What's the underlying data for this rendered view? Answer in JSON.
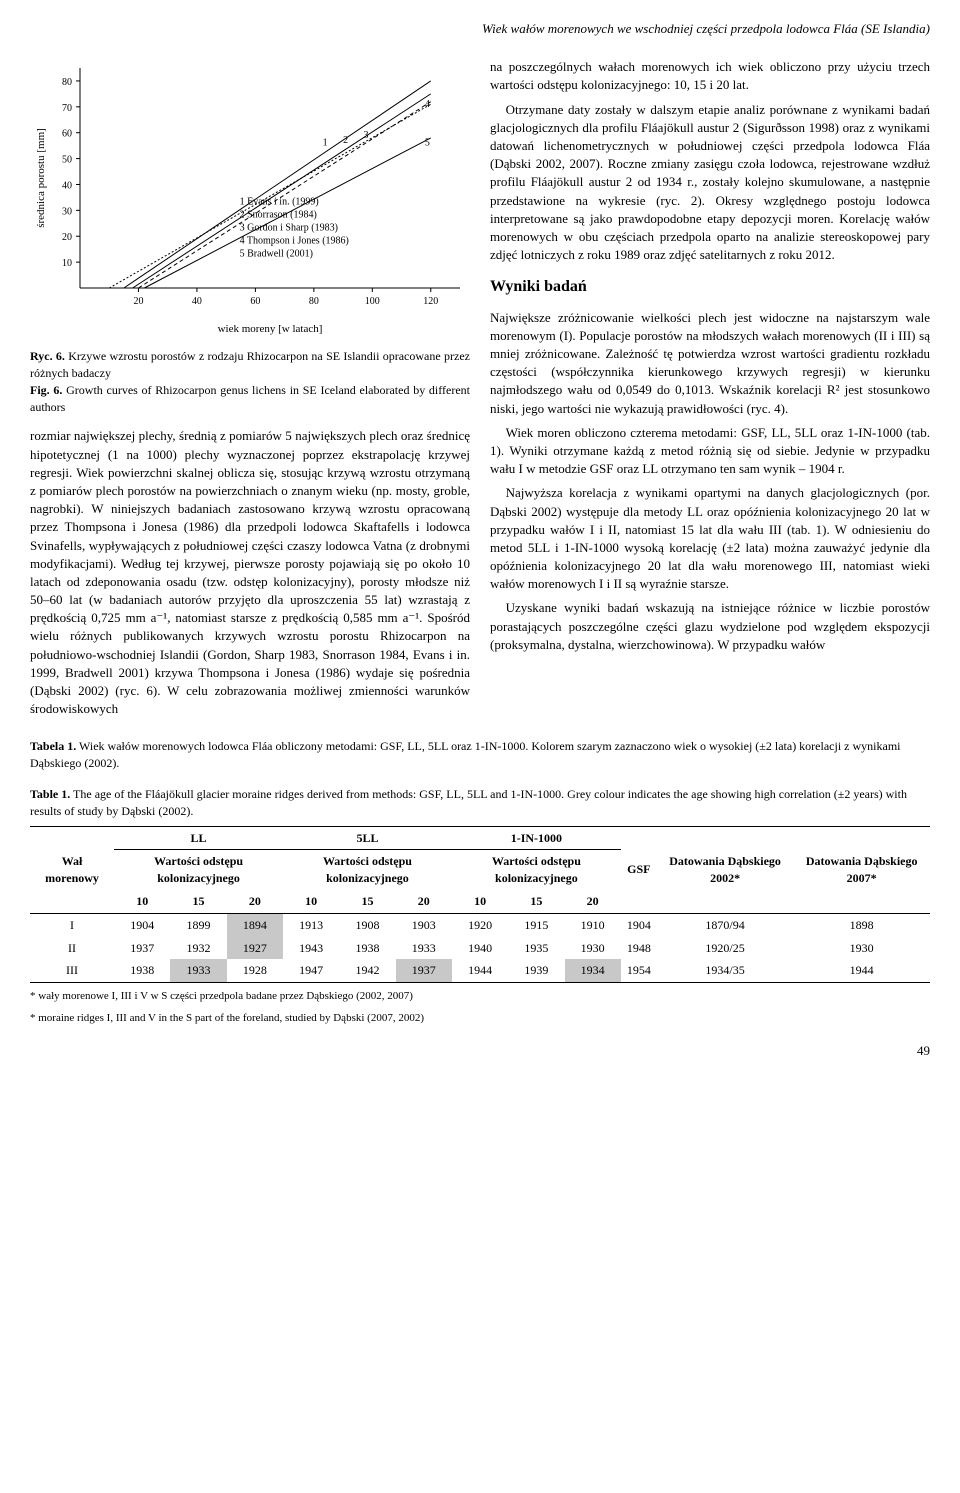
{
  "header": {
    "running_title": "Wiek wałów morenowych we wschodniej części przedpola lodowca Fláa (SE Islandia)"
  },
  "chart": {
    "type": "line",
    "xlabel": "wiek moreny [w latach]",
    "ylabel": "średnica porostu [mm]",
    "xlim": [
      0,
      130
    ],
    "ylim": [
      0,
      85
    ],
    "xticks": [
      20,
      40,
      60,
      80,
      100,
      120
    ],
    "yticks": [
      10,
      20,
      30,
      40,
      50,
      60,
      70,
      80
    ],
    "background_color": "#ffffff",
    "axis_color": "#000000",
    "line_color": "#000000",
    "legend_items": [
      "1 Evans i in. (1999)",
      "2 Snorrason (1984)",
      "3 Gordon i Sharp (1983)",
      "4 Thompson i Jones (1986)",
      "5 Bradwell (2001)"
    ],
    "curve_labels": [
      "1",
      "2",
      "3",
      "4",
      "5"
    ],
    "curves": [
      {
        "id": "1",
        "dash": "none",
        "pts": [
          [
            15,
            0
          ],
          [
            120,
            80
          ]
        ]
      },
      {
        "id": "2",
        "dash": "none",
        "pts": [
          [
            18,
            0
          ],
          [
            120,
            75
          ]
        ]
      },
      {
        "id": "3",
        "dash": "4,3",
        "pts": [
          [
            20,
            0
          ],
          [
            120,
            72
          ]
        ]
      },
      {
        "id": "4",
        "dash": "2,2",
        "pts": [
          [
            10,
            0
          ],
          [
            120,
            71
          ]
        ]
      },
      {
        "id": "5",
        "dash": "none",
        "pts": [
          [
            22,
            0
          ],
          [
            120,
            58
          ]
        ]
      }
    ],
    "label_fontsize": 11,
    "tick_fontsize": 10
  },
  "fig6": {
    "pl_bold": "Ryc. 6.",
    "pl_text": " Krzywe wzrostu porostów z rodzaju Rhizocarpon na SE Islandii opracowane przez różnych badaczy",
    "en_bold": "Fig. 6.",
    "en_text": " Growth curves of Rhizocarpon genus lichens in SE Iceland elaborated by different authors"
  },
  "left_paragraph": "rozmiar największej plechy, średnią z pomiarów 5 największych plech oraz średnicę hipotetycznej (1 na 1000) plechy wyznaczonej poprzez ekstrapolację krzywej regresji. Wiek powierzchni skalnej oblicza się, stosując krzywą wzrostu otrzymaną z pomiarów plech porostów na powierzchniach o znanym wieku (np. mosty, groble, nagrobki). W niniejszych badaniach zastosowano krzywą wzrostu opracowaną przez Thompsona i Jonesa (1986) dla przedpoli lodowca Skaftafells i lodowca Svinafells, wypływających z południowej części czaszy lodowca Vatna (z drobnymi modyfikacjami). Według tej krzywej, pierwsze porosty pojawiają się po około 10 latach od zdeponowania osadu (tzw. odstęp kolonizacyjny), porosty młodsze niż 50–60 lat (w badaniach autorów przyjęto dla uproszczenia 55 lat) wzrastają z prędkością 0,725 mm a⁻¹, natomiast starsze z prędkością 0,585 mm a⁻¹. Spośród wielu różnych publikowanych krzywych wzrostu porostu Rhizocarpon na południowo-wschodniej Islandii (Gordon, Sharp 1983, Snorrason 1984, Evans i in. 1999, Bradwell 2001) krzywa Thompsona i Jonesa (1986) wydaje się pośrednia (Dąbski 2002) (ryc. 6). W celu zobrazowania możliwej zmienności warunków środowiskowych",
  "right_p1": "na poszczególnych wałach morenowych ich wiek obliczono przy użyciu trzech wartości odstępu kolonizacyjnego: 10, 15 i 20 lat.",
  "right_p2": "Otrzymane daty zostały w dalszym etapie analiz porównane z wynikami badań glacjologicznych dla profilu Fláajökull austur 2 (Sigurðsson 1998) oraz z wynikami datowań lichenometrycznych w południowej części przedpola lodowca Fláa (Dąbski 2002, 2007). Roczne zmiany zasięgu czoła lodowca, rejestrowane wzdłuż profilu Fláajökull austur 2 od 1934 r., zostały kolejno skumulowane, a następnie przedstawione na wykresie (ryc. 2). Okresy względnego postoju lodowca interpretowane są jako prawdopodobne etapy depozycji moren. Korelację wałów morenowych w obu częściach przedpola oparto na analizie stereoskopowej pary zdjęć lotniczych z roku 1989 oraz zdjęć satelitarnych z roku 2012.",
  "results_heading": "Wyniki badań",
  "results_p1": "Największe zróżnicowanie wielkości plech jest widoczne na najstarszym wale morenowym (I). Populacje porostów na młodszych wałach morenowych (II i III) są mniej zróżnicowane. Zależność tę potwierdza wzrost wartości gradientu rozkładu częstości (współczynnika kierunkowego krzywych regresji) w kierunku najmłodszego wału od 0,0549 do 0,1013. Wskaźnik korelacji R² jest stosunkowo niski, jego wartości nie wykazują prawidłowości (ryc. 4).",
  "results_p2": "Wiek moren obliczono czterema metodami: GSF, LL, 5LL oraz 1-IN-1000 (tab. 1). Wyniki otrzymane każdą z metod różnią się od siebie. Jedynie w przypadku wału I w metodzie GSF oraz LL otrzymano ten sam wynik – 1904 r.",
  "results_p3": "Najwyższa korelacja z wynikami opartymi na danych glacjologicznych (por. Dąbski 2002) występuje dla metody LL oraz opóźnienia kolonizacyjnego 20 lat w przypadku wałów I i II, natomiast 15 lat dla wału III (tab. 1). W odniesieniu do metod 5LL i 1-IN-1000 wysoką korelację (±2 lata) można zauważyć jedynie dla opóźnienia kolonizacyjnego 20 lat dla wału morenowego III, natomiast wieki wałów morenowych I i II są wyraźnie starsze.",
  "results_p4": "Uzyskane wyniki badań wskazują na istniejące różnice w liczbie porostów porastających poszczególne części glazu wydzielone pod względem ekspozycji (proksymalna, dystalna, wierzchowinowa). W przypadku wałów",
  "table_caption_pl_bold": "Tabela 1.",
  "table_caption_pl": " Wiek wałów morenowych lodowca Fláa obliczony metodami: GSF, LL, 5LL oraz 1-IN-1000. Kolorem szarym zaznaczono wiek o wysokiej (±2 lata) korelacji z wynikami Dąbskiego (2002).",
  "table_caption_en_bold": "Table 1.",
  "table_caption_en": " The age of the Fláajökull glacier moraine ridges derived from methods: GSF, LL, 5LL and 1-IN-1000. Grey colour indicates the age showing high correlation (±2 years) with results of study by Dąbski (2002).",
  "table": {
    "row_header": "Wał morenowy",
    "group_labels": [
      "LL",
      "5LL",
      "1-IN-1000"
    ],
    "sub_header": "Wartości odstępu kolonizacyjnego",
    "sub_cols": [
      "10",
      "15",
      "20"
    ],
    "gsf_label": "GSF",
    "dab2002_label": "Datowania Dąbskiego 2002*",
    "dab2007_label": "Datowania Dąbskiego 2007*",
    "rows": [
      {
        "id": "I",
        "ll": [
          "1904",
          "1899",
          "1894"
        ],
        "l5": [
          "1913",
          "1908",
          "1903"
        ],
        "in1000": [
          "1920",
          "1915",
          "1910"
        ],
        "gsf": "1904",
        "d2002": "1870/94",
        "d2007": "1898",
        "hl": {
          "ll": [
            2
          ]
        }
      },
      {
        "id": "II",
        "ll": [
          "1937",
          "1932",
          "1927"
        ],
        "l5": [
          "1943",
          "1938",
          "1933"
        ],
        "in1000": [
          "1940",
          "1935",
          "1930"
        ],
        "gsf": "1948",
        "d2002": "1920/25",
        "d2007": "1930",
        "hl": {
          "ll": [
            2
          ]
        }
      },
      {
        "id": "III",
        "ll": [
          "1938",
          "1933",
          "1928"
        ],
        "l5": [
          "1947",
          "1942",
          "1937"
        ],
        "in1000": [
          "1944",
          "1939",
          "1934"
        ],
        "gsf": "1954",
        "d2002": "1934/35",
        "d2007": "1944",
        "hl": {
          "ll": [
            1
          ],
          "l5": [
            2
          ],
          "in1000": [
            2
          ]
        }
      }
    ]
  },
  "footnote_pl": "* wały morenowe I, III i V w S części przedpola badane przez Dąbskiego (2002, 2007)",
  "footnote_en": "* moraine ridges I, III and V in the S part of the foreland, studied by Dąbski (2007, 2002)",
  "page_number": "49"
}
